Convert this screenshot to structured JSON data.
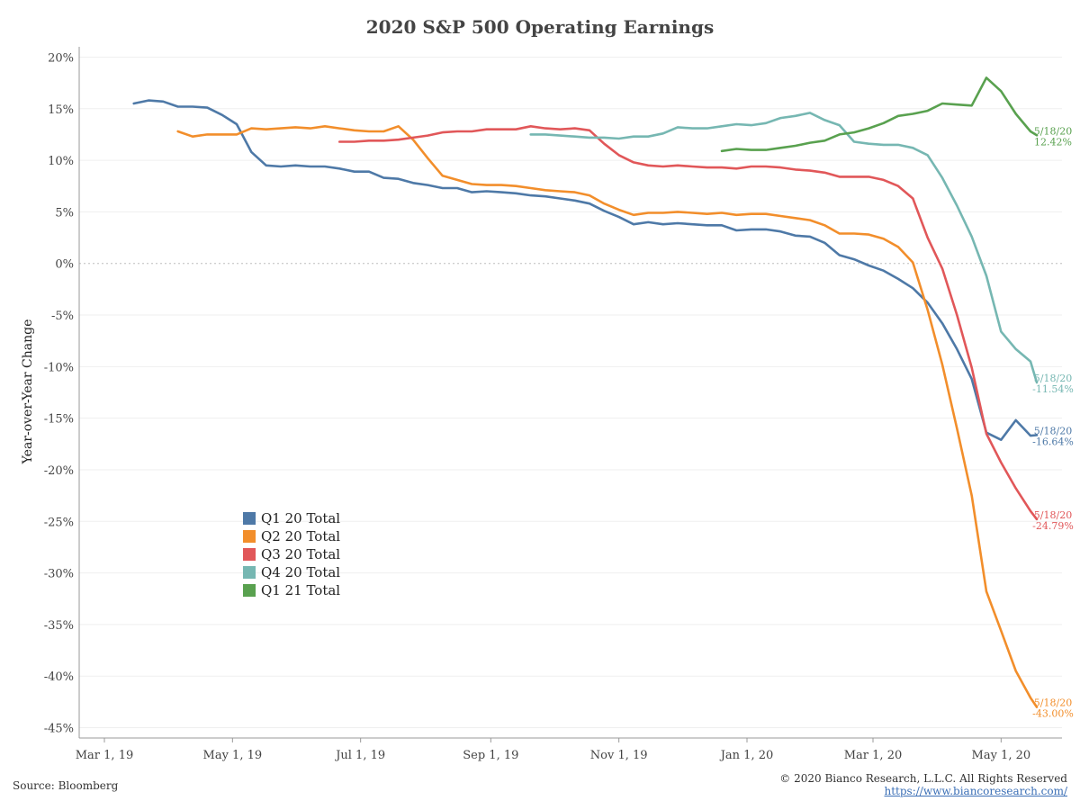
{
  "title": "2020 S&P 500 Operating Earnings",
  "footer": {
    "source": "Source: Bloomberg",
    "copyright": "© 2020 Bianco Research, L.L.C. All Rights Reserved",
    "link": "https://www.biancoresearch.com/"
  },
  "chart_data": {
    "type": "line",
    "title": "2020 S&P 500 Operating Earnings",
    "xlabel": "",
    "ylabel": "Year-over-Year Change",
    "x_ticks": [
      "Mar 1, 19",
      "May 1, 19",
      "Jul 1, 19",
      "Sep 1, 19",
      "Nov 1, 19",
      "Jan 1, 20",
      "Mar 1, 20",
      "May 1, 20"
    ],
    "x_range": [
      "2019-02-17",
      "2020-05-30"
    ],
    "y_ticks": [
      "20%",
      "15%",
      "10%",
      "5%",
      "0%",
      "-5%",
      "-10%",
      "-15%",
      "-20%",
      "-25%",
      "-30%",
      "-35%",
      "-40%",
      "-45%"
    ],
    "ylim": [
      -46,
      21
    ],
    "legend_position": "lower-left",
    "series": [
      {
        "name": "Q1 20 Total",
        "color": "#4e79a7",
        "end_label": [
          "5/18/20",
          "-16.64%"
        ],
        "points": [
          [
            "2019-03-15",
            15.5
          ],
          [
            "2019-03-22",
            15.8
          ],
          [
            "2019-03-29",
            15.7
          ],
          [
            "2019-04-05",
            15.2
          ],
          [
            "2019-04-12",
            15.2
          ],
          [
            "2019-04-19",
            15.1
          ],
          [
            "2019-04-26",
            14.4
          ],
          [
            "2019-05-03",
            13.5
          ],
          [
            "2019-05-10",
            10.8
          ],
          [
            "2019-05-17",
            9.5
          ],
          [
            "2019-05-24",
            9.4
          ],
          [
            "2019-05-31",
            9.5
          ],
          [
            "2019-06-07",
            9.4
          ],
          [
            "2019-06-14",
            9.4
          ],
          [
            "2019-06-21",
            9.2
          ],
          [
            "2019-06-28",
            8.9
          ],
          [
            "2019-07-05",
            8.9
          ],
          [
            "2019-07-12",
            8.3
          ],
          [
            "2019-07-19",
            8.2
          ],
          [
            "2019-07-26",
            7.8
          ],
          [
            "2019-08-02",
            7.6
          ],
          [
            "2019-08-09",
            7.3
          ],
          [
            "2019-08-16",
            7.3
          ],
          [
            "2019-08-23",
            6.9
          ],
          [
            "2019-08-30",
            7.0
          ],
          [
            "2019-09-06",
            6.9
          ],
          [
            "2019-09-13",
            6.8
          ],
          [
            "2019-09-20",
            6.6
          ],
          [
            "2019-09-27",
            6.5
          ],
          [
            "2019-10-04",
            6.3
          ],
          [
            "2019-10-11",
            6.1
          ],
          [
            "2019-10-18",
            5.8
          ],
          [
            "2019-10-25",
            5.1
          ],
          [
            "2019-11-01",
            4.5
          ],
          [
            "2019-11-08",
            3.8
          ],
          [
            "2019-11-15",
            4.0
          ],
          [
            "2019-11-22",
            3.8
          ],
          [
            "2019-11-29",
            3.9
          ],
          [
            "2019-12-06",
            3.8
          ],
          [
            "2019-12-13",
            3.7
          ],
          [
            "2019-12-20",
            3.7
          ],
          [
            "2019-12-27",
            3.2
          ],
          [
            "2020-01-03",
            3.3
          ],
          [
            "2020-01-10",
            3.3
          ],
          [
            "2020-01-17",
            3.1
          ],
          [
            "2020-01-24",
            2.7
          ],
          [
            "2020-01-31",
            2.6
          ],
          [
            "2020-02-07",
            2.0
          ],
          [
            "2020-02-14",
            0.8
          ],
          [
            "2020-02-21",
            0.4
          ],
          [
            "2020-02-28",
            -0.2
          ],
          [
            "2020-03-06",
            -0.7
          ],
          [
            "2020-03-13",
            -1.5
          ],
          [
            "2020-03-20",
            -2.4
          ],
          [
            "2020-03-27",
            -3.8
          ],
          [
            "2020-04-03",
            -5.8
          ],
          [
            "2020-04-10",
            -8.3
          ],
          [
            "2020-04-17",
            -11.2
          ],
          [
            "2020-04-24",
            -16.4
          ],
          [
            "2020-05-01",
            -17.1
          ],
          [
            "2020-05-08",
            -15.2
          ],
          [
            "2020-05-15",
            -16.7
          ],
          [
            "2020-05-18",
            -16.64
          ]
        ]
      },
      {
        "name": "Q2 20 Total",
        "color": "#f28e2b",
        "end_label": [
          "5/18/20",
          "-43.00%"
        ],
        "points": [
          [
            "2019-04-05",
            12.8
          ],
          [
            "2019-04-12",
            12.3
          ],
          [
            "2019-04-19",
            12.5
          ],
          [
            "2019-04-26",
            12.5
          ],
          [
            "2019-05-03",
            12.5
          ],
          [
            "2019-05-10",
            13.1
          ],
          [
            "2019-05-17",
            13.0
          ],
          [
            "2019-05-24",
            13.1
          ],
          [
            "2019-05-31",
            13.2
          ],
          [
            "2019-06-07",
            13.1
          ],
          [
            "2019-06-14",
            13.3
          ],
          [
            "2019-06-21",
            13.1
          ],
          [
            "2019-06-28",
            12.9
          ],
          [
            "2019-07-05",
            12.8
          ],
          [
            "2019-07-12",
            12.8
          ],
          [
            "2019-07-19",
            13.3
          ],
          [
            "2019-07-26",
            12.0
          ],
          [
            "2019-08-02",
            10.2
          ],
          [
            "2019-08-09",
            8.5
          ],
          [
            "2019-08-16",
            8.1
          ],
          [
            "2019-08-23",
            7.7
          ],
          [
            "2019-08-30",
            7.6
          ],
          [
            "2019-09-06",
            7.6
          ],
          [
            "2019-09-13",
            7.5
          ],
          [
            "2019-09-20",
            7.3
          ],
          [
            "2019-09-27",
            7.1
          ],
          [
            "2019-10-04",
            7.0
          ],
          [
            "2019-10-11",
            6.9
          ],
          [
            "2019-10-18",
            6.6
          ],
          [
            "2019-10-25",
            5.8
          ],
          [
            "2019-11-01",
            5.2
          ],
          [
            "2019-11-08",
            4.7
          ],
          [
            "2019-11-15",
            4.9
          ],
          [
            "2019-11-22",
            4.9
          ],
          [
            "2019-11-29",
            5.0
          ],
          [
            "2019-12-06",
            4.9
          ],
          [
            "2019-12-13",
            4.8
          ],
          [
            "2019-12-20",
            4.9
          ],
          [
            "2019-12-27",
            4.7
          ],
          [
            "2020-01-03",
            4.8
          ],
          [
            "2020-01-10",
            4.8
          ],
          [
            "2020-01-17",
            4.6
          ],
          [
            "2020-01-24",
            4.4
          ],
          [
            "2020-01-31",
            4.2
          ],
          [
            "2020-02-07",
            3.7
          ],
          [
            "2020-02-14",
            2.9
          ],
          [
            "2020-02-21",
            2.9
          ],
          [
            "2020-02-28",
            2.8
          ],
          [
            "2020-03-06",
            2.4
          ],
          [
            "2020-03-13",
            1.6
          ],
          [
            "2020-03-20",
            0.1
          ],
          [
            "2020-03-27",
            -4.5
          ],
          [
            "2020-04-03",
            -9.8
          ],
          [
            "2020-04-10",
            -16.0
          ],
          [
            "2020-04-17",
            -22.5
          ],
          [
            "2020-04-24",
            -31.8
          ],
          [
            "2020-05-01",
            -35.6
          ],
          [
            "2020-05-08",
            -39.5
          ],
          [
            "2020-05-15",
            -42.1
          ],
          [
            "2020-05-18",
            -43.0
          ]
        ]
      },
      {
        "name": "Q3 20 Total",
        "color": "#e15759",
        "end_label": [
          "5/18/20",
          "-24.79%"
        ],
        "points": [
          [
            "2019-06-21",
            11.8
          ],
          [
            "2019-06-28",
            11.8
          ],
          [
            "2019-07-05",
            11.9
          ],
          [
            "2019-07-12",
            11.9
          ],
          [
            "2019-07-19",
            12.0
          ],
          [
            "2019-07-26",
            12.2
          ],
          [
            "2019-08-02",
            12.4
          ],
          [
            "2019-08-09",
            12.7
          ],
          [
            "2019-08-16",
            12.8
          ],
          [
            "2019-08-23",
            12.8
          ],
          [
            "2019-08-30",
            13.0
          ],
          [
            "2019-09-06",
            13.0
          ],
          [
            "2019-09-13",
            13.0
          ],
          [
            "2019-09-20",
            13.3
          ],
          [
            "2019-09-27",
            13.1
          ],
          [
            "2019-10-04",
            13.0
          ],
          [
            "2019-10-11",
            13.1
          ],
          [
            "2019-10-18",
            12.9
          ],
          [
            "2019-10-25",
            11.6
          ],
          [
            "2019-11-01",
            10.5
          ],
          [
            "2019-11-08",
            9.8
          ],
          [
            "2019-11-15",
            9.5
          ],
          [
            "2019-11-22",
            9.4
          ],
          [
            "2019-11-29",
            9.5
          ],
          [
            "2019-12-06",
            9.4
          ],
          [
            "2019-12-13",
            9.3
          ],
          [
            "2019-12-20",
            9.3
          ],
          [
            "2019-12-27",
            9.2
          ],
          [
            "2020-01-03",
            9.4
          ],
          [
            "2020-01-10",
            9.4
          ],
          [
            "2020-01-17",
            9.3
          ],
          [
            "2020-01-24",
            9.1
          ],
          [
            "2020-01-31",
            9.0
          ],
          [
            "2020-02-07",
            8.8
          ],
          [
            "2020-02-14",
            8.4
          ],
          [
            "2020-02-21",
            8.4
          ],
          [
            "2020-02-28",
            8.4
          ],
          [
            "2020-03-06",
            8.1
          ],
          [
            "2020-03-13",
            7.5
          ],
          [
            "2020-03-20",
            6.3
          ],
          [
            "2020-03-27",
            2.5
          ],
          [
            "2020-04-03",
            -0.5
          ],
          [
            "2020-04-10",
            -5.0
          ],
          [
            "2020-04-17",
            -10.1
          ],
          [
            "2020-04-24",
            -16.5
          ],
          [
            "2020-05-01",
            -19.3
          ],
          [
            "2020-05-08",
            -21.8
          ],
          [
            "2020-05-15",
            -24.0
          ],
          [
            "2020-05-18",
            -24.79
          ]
        ]
      },
      {
        "name": "Q4 20 Total",
        "color": "#76b7b2",
        "end_label": [
          "5/18/20",
          "-11.54%"
        ],
        "points": [
          [
            "2019-09-20",
            12.5
          ],
          [
            "2019-09-27",
            12.5
          ],
          [
            "2019-10-04",
            12.4
          ],
          [
            "2019-10-11",
            12.3
          ],
          [
            "2019-10-18",
            12.2
          ],
          [
            "2019-10-25",
            12.2
          ],
          [
            "2019-11-01",
            12.1
          ],
          [
            "2019-11-08",
            12.3
          ],
          [
            "2019-11-15",
            12.3
          ],
          [
            "2019-11-22",
            12.6
          ],
          [
            "2019-11-29",
            13.2
          ],
          [
            "2019-12-06",
            13.1
          ],
          [
            "2019-12-13",
            13.1
          ],
          [
            "2019-12-20",
            13.3
          ],
          [
            "2019-12-27",
            13.5
          ],
          [
            "2020-01-03",
            13.4
          ],
          [
            "2020-01-10",
            13.6
          ],
          [
            "2020-01-17",
            14.1
          ],
          [
            "2020-01-24",
            14.3
          ],
          [
            "2020-01-31",
            14.6
          ],
          [
            "2020-02-07",
            13.9
          ],
          [
            "2020-02-14",
            13.4
          ],
          [
            "2020-02-21",
            11.8
          ],
          [
            "2020-02-28",
            11.6
          ],
          [
            "2020-03-06",
            11.5
          ],
          [
            "2020-03-13",
            11.5
          ],
          [
            "2020-03-20",
            11.2
          ],
          [
            "2020-03-27",
            10.5
          ],
          [
            "2020-04-03",
            8.3
          ],
          [
            "2020-04-10",
            5.6
          ],
          [
            "2020-04-17",
            2.6
          ],
          [
            "2020-04-24",
            -1.2
          ],
          [
            "2020-05-01",
            -6.6
          ],
          [
            "2020-05-08",
            -8.3
          ],
          [
            "2020-05-15",
            -9.5
          ],
          [
            "2020-05-18",
            -11.54
          ]
        ]
      },
      {
        "name": "Q1 21 Total",
        "color": "#59a14f",
        "end_label": [
          "5/18/20",
          "12.42%"
        ],
        "points": [
          [
            "2019-12-20",
            10.9
          ],
          [
            "2019-12-27",
            11.1
          ],
          [
            "2020-01-03",
            11.0
          ],
          [
            "2020-01-10",
            11.0
          ],
          [
            "2020-01-17",
            11.2
          ],
          [
            "2020-01-24",
            11.4
          ],
          [
            "2020-01-31",
            11.7
          ],
          [
            "2020-02-07",
            11.9
          ],
          [
            "2020-02-14",
            12.5
          ],
          [
            "2020-02-21",
            12.7
          ],
          [
            "2020-02-28",
            13.1
          ],
          [
            "2020-03-06",
            13.6
          ],
          [
            "2020-03-13",
            14.3
          ],
          [
            "2020-03-20",
            14.5
          ],
          [
            "2020-03-27",
            14.8
          ],
          [
            "2020-04-03",
            15.5
          ],
          [
            "2020-04-10",
            15.4
          ],
          [
            "2020-04-17",
            15.3
          ],
          [
            "2020-04-24",
            18.0
          ],
          [
            "2020-05-01",
            16.7
          ],
          [
            "2020-05-08",
            14.5
          ],
          [
            "2020-05-15",
            12.8
          ],
          [
            "2020-05-18",
            12.42
          ]
        ]
      }
    ]
  }
}
